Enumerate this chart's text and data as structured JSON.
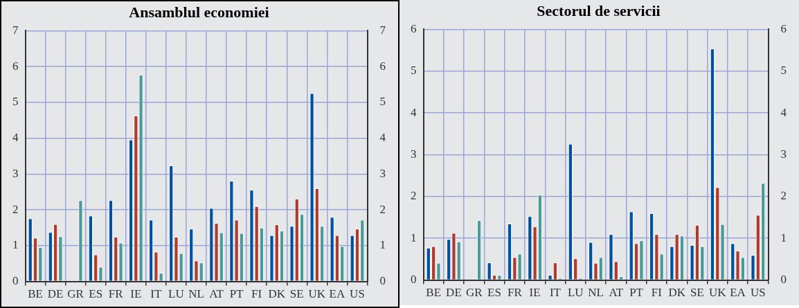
{
  "chart_data": [
    {
      "type": "bar",
      "title": "Ansamblul economiei",
      "categories": [
        "BE",
        "DE",
        "GR",
        "ES",
        "FR",
        "IE",
        "IT",
        "LU",
        "NL",
        "AT",
        "PT",
        "FI",
        "DK",
        "SE",
        "UK",
        "EA",
        "US"
      ],
      "series": [
        {
          "color": "#0050a0",
          "values": [
            1.76,
            1.38,
            null,
            1.84,
            2.27,
            3.96,
            1.72,
            3.24,
            1.47,
            2.05,
            2.81,
            2.56,
            1.29,
            1.55,
            5.26,
            1.8,
            1.29
          ]
        },
        {
          "color": "#b03a2e",
          "values": [
            1.22,
            1.6,
            null,
            0.75,
            1.25,
            4.63,
            0.83,
            1.25,
            0.58,
            1.63,
            1.72,
            2.1,
            1.59,
            2.31,
            2.6,
            1.29,
            1.47
          ]
        },
        {
          "color": "#4a9a9a",
          "values": [
            0.96,
            1.26,
            2.27,
            0.41,
            1.08,
            5.77,
            0.24,
            0.79,
            0.53,
            1.37,
            1.35,
            1.5,
            1.42,
            1.88,
            1.55,
            0.99,
            1.72
          ]
        }
      ],
      "ylim": [
        0,
        7
      ],
      "yticks": [
        0,
        1,
        2,
        3,
        4,
        5,
        6,
        7
      ],
      "y2lim": [
        0,
        7
      ],
      "y2ticks": [
        0,
        1,
        2,
        3,
        4,
        5,
        6,
        7
      ],
      "grid": true
    },
    {
      "type": "bar",
      "title": "Sectorul de servicii",
      "categories": [
        "BE",
        "DE",
        "GR",
        "ES",
        "FR",
        "IE",
        "IT",
        "LU",
        "NL",
        "AT",
        "PT",
        "FI",
        "DK",
        "SE",
        "UK",
        "EA",
        "US"
      ],
      "series": [
        {
          "color": "#0050a0",
          "values": [
            0.77,
            0.98,
            null,
            0.42,
            1.35,
            1.53,
            0.12,
            3.26,
            0.91,
            1.1,
            1.64,
            1.6,
            0.81,
            0.84,
            5.54,
            0.88,
            0.6
          ]
        },
        {
          "color": "#b03a2e",
          "values": [
            0.81,
            1.13,
            null,
            0.12,
            0.55,
            1.28,
            0.42,
            0.52,
            0.41,
            0.45,
            0.88,
            1.1,
            1.1,
            1.32,
            2.22,
            0.7,
            1.56
          ]
        },
        {
          "color": "#4a9a9a",
          "values": [
            0.41,
            0.92,
            1.43,
            0.12,
            0.63,
            2.04,
            0.05,
            0.05,
            0.55,
            0.09,
            0.95,
            0.63,
            1.06,
            0.81,
            1.34,
            0.55,
            2.32
          ]
        }
      ],
      "ylim": [
        0,
        6
      ],
      "yticks": [
        0,
        1,
        2,
        3,
        4,
        5,
        6
      ],
      "y2lim": [
        0,
        6
      ],
      "y2ticks": [
        0,
        1,
        2,
        3,
        4,
        5,
        6
      ],
      "grid": true
    }
  ]
}
